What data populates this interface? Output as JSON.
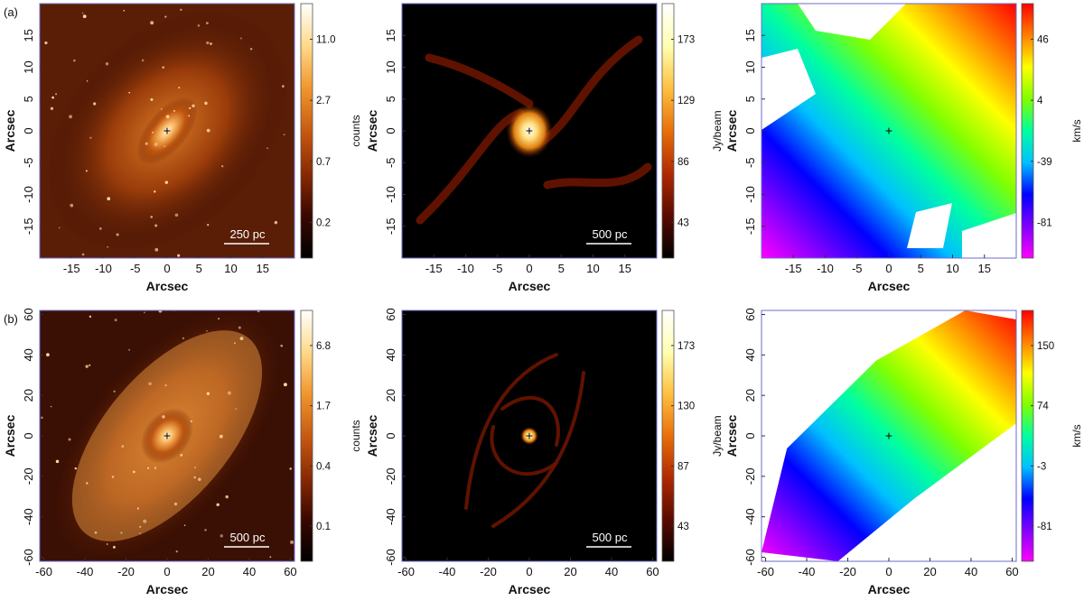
{
  "rows": [
    {
      "label": "(a)",
      "axis_ticks": [
        "-15",
        "-10",
        "-5",
        "0",
        "5",
        "10",
        "15"
      ],
      "axis_tick_values": [
        -15,
        -10,
        -5,
        0,
        5,
        10,
        15
      ],
      "axis_range": [
        -20,
        20
      ],
      "panels": [
        {
          "kind": "optical",
          "scalebar": "250 pc",
          "colorbar_label": "counts",
          "colorbar_ticks": [
            "11.0",
            "2.7",
            "0.7",
            "0.2"
          ]
        },
        {
          "kind": "co",
          "scalebar": "500 pc",
          "colorbar_label": "Jy/beam",
          "colorbar_ticks": [
            "173",
            "129",
            "86",
            "43"
          ]
        },
        {
          "kind": "velocity",
          "scalebar": "",
          "colorbar_label": "km/s",
          "colorbar_ticks": [
            "46",
            "4",
            "-39",
            "-81"
          ]
        }
      ]
    },
    {
      "label": "(b)",
      "axis_ticks": [
        "-60",
        "-40",
        "-20",
        "0",
        "20",
        "40",
        "60"
      ],
      "axis_tick_values": [
        -60,
        -40,
        -20,
        0,
        20,
        40,
        60
      ],
      "axis_range": [
        -62,
        62
      ],
      "panels": [
        {
          "kind": "optical",
          "scalebar": "500 pc",
          "colorbar_label": "counts",
          "colorbar_ticks": [
            "6.8",
            "1.7",
            "0.4",
            "0.1"
          ]
        },
        {
          "kind": "co",
          "scalebar": "500 pc",
          "colorbar_label": "Jy/beam",
          "colorbar_ticks": [
            "173",
            "130",
            "87",
            "43"
          ]
        },
        {
          "kind": "velocity",
          "scalebar": "",
          "colorbar_label": "km/s",
          "colorbar_ticks": [
            "150",
            "74",
            "-3",
            "-81"
          ]
        }
      ]
    }
  ],
  "axis_label": "Arcsec",
  "colors": {
    "counts": [
      "#000000",
      "#3a0800",
      "#8a2a05",
      "#c85a12",
      "#f0962c",
      "#ffd98a",
      "#ffffff"
    ],
    "jybeam": [
      "#000000",
      "#5a0a00",
      "#b02a00",
      "#e8700a",
      "#ffc040",
      "#ffffb0",
      "#ffffff"
    ],
    "velocity": [
      "#ff00ff",
      "#8000ff",
      "#0000ff",
      "#00c0ff",
      "#00ffa0",
      "#80ff00",
      "#ffff00",
      "#ff8000",
      "#ff0000"
    ]
  }
}
